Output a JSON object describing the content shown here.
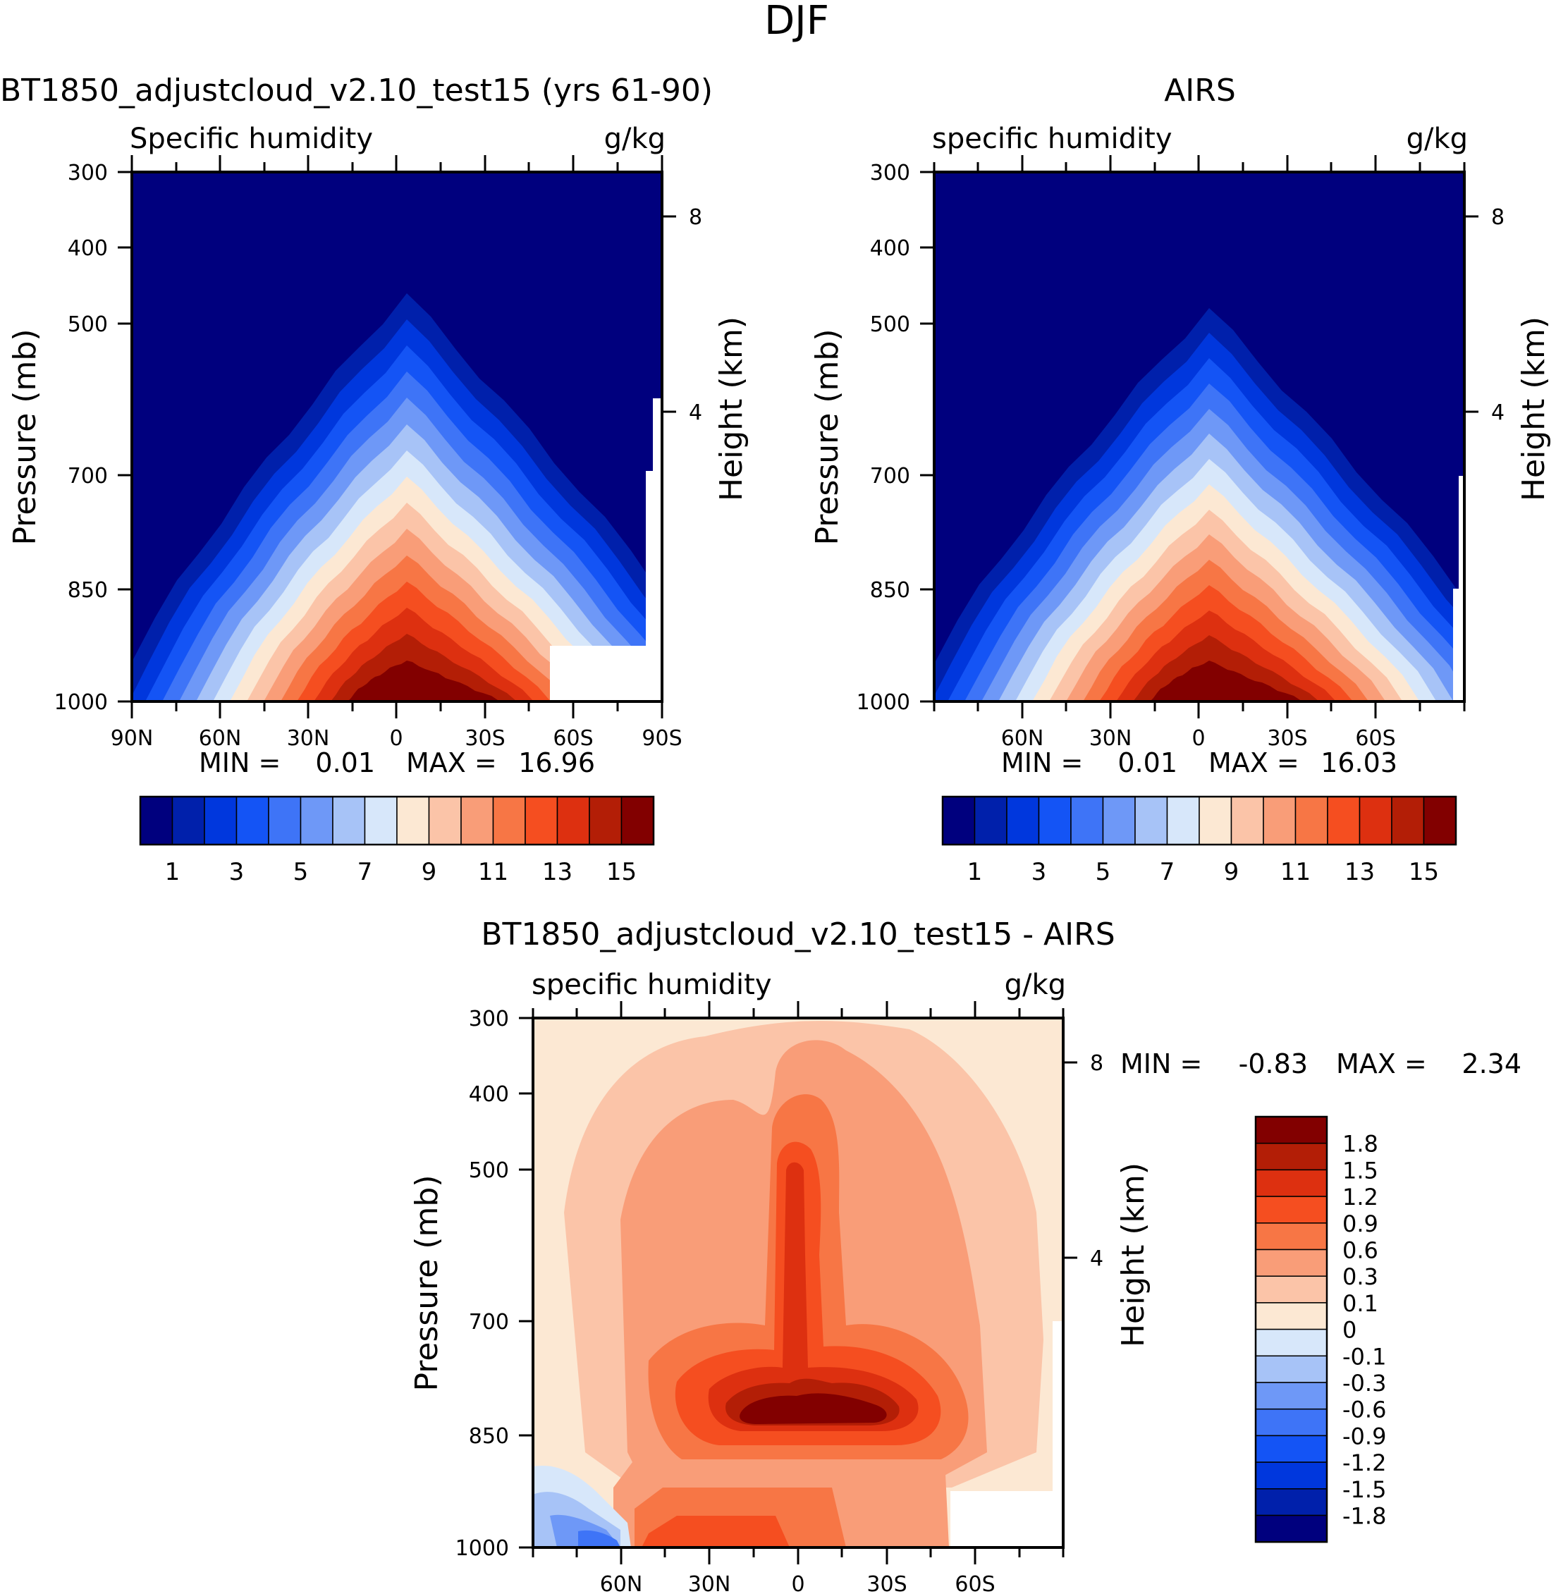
{
  "page_title": "DJF",
  "panels": [
    {
      "title": "BT1850_adjustcloud_v2.10_test15 (yrs 61-90)",
      "left_label": "Specific humidity",
      "units": "g/kg",
      "ylabel": "Pressure (mb)",
      "ylabel_right": "Height (km)",
      "stats": {
        "min_label": "MIN =",
        "min": "0.01",
        "max_label": "MAX =",
        "max": "16.96"
      }
    },
    {
      "title": "AIRS",
      "left_label": "specific humidity",
      "units": "g/kg",
      "ylabel": "Pressure (mb)",
      "ylabel_right": "Height (km)",
      "stats": {
        "min_label": "MIN =",
        "min": "0.01",
        "max_label": "MAX =",
        "max": "16.03"
      }
    },
    {
      "title": "BT1850_adjustcloud_v2.10_test15 - AIRS",
      "left_label": "specific humidity",
      "units": "g/kg",
      "ylabel": "Pressure (mb)",
      "ylabel_right": "Height (km)",
      "stats": {
        "min_label": "MIN =",
        "min": "-0.83",
        "max_label": "MAX =",
        "max": "2.34"
      }
    }
  ],
  "chart_data": [
    {
      "type": "contour",
      "title": "BT1850_adjustcloud_v2.10_test15 (yrs 61-90)",
      "variable": "Specific humidity",
      "units": "g/kg",
      "xlabel": "",
      "ylabel": "Pressure (mb)",
      "ylabel_right": "Height (km)",
      "x_ticks": [
        "90N",
        "60N",
        "30N",
        "0",
        "30S",
        "60S",
        "90S"
      ],
      "y_ticks": [
        "300",
        "400",
        "500",
        "700",
        "850",
        "1000"
      ],
      "y2_ticks": [
        "8",
        "4"
      ],
      "ylim": [
        1000,
        300
      ],
      "levels": [
        1,
        2,
        3,
        4,
        5,
        6,
        7,
        8,
        9,
        10,
        11,
        12,
        13,
        14,
        15
      ],
      "min": 0.01,
      "max": 16.96,
      "colorbar_labels": [
        "1",
        "3",
        "5",
        "7",
        "9",
        "11",
        "13",
        "15"
      ]
    },
    {
      "type": "contour",
      "title": "AIRS",
      "variable": "specific humidity",
      "units": "g/kg",
      "xlabel": "",
      "ylabel": "Pressure (mb)",
      "ylabel_right": "Height (km)",
      "x_ticks": [
        "60N",
        "30N",
        "0",
        "30S",
        "60S"
      ],
      "y_ticks": [
        "300",
        "400",
        "500",
        "700",
        "850",
        "1000"
      ],
      "y2_ticks": [
        "8",
        "4"
      ],
      "ylim": [
        1000,
        300
      ],
      "levels": [
        1,
        2,
        3,
        4,
        5,
        6,
        7,
        8,
        9,
        10,
        11,
        12,
        13,
        14,
        15
      ],
      "min": 0.01,
      "max": 16.03,
      "colorbar_labels": [
        "1",
        "3",
        "5",
        "7",
        "9",
        "11",
        "13",
        "15"
      ]
    },
    {
      "type": "contour",
      "title": "BT1850_adjustcloud_v2.10_test15 - AIRS",
      "variable": "specific humidity",
      "units": "g/kg",
      "xlabel": "",
      "ylabel": "Pressure (mb)",
      "ylabel_right": "Height (km)",
      "x_ticks": [
        "60N",
        "30N",
        "0",
        "30S",
        "60S"
      ],
      "y_ticks": [
        "300",
        "400",
        "500",
        "700",
        "850",
        "1000"
      ],
      "y2_ticks": [
        "8",
        "4"
      ],
      "ylim": [
        1000,
        300
      ],
      "levels": [
        -1.8,
        -1.5,
        -1.2,
        -0.9,
        -0.6,
        -0.3,
        -0.1,
        0,
        0.1,
        0.3,
        0.6,
        0.9,
        1.2,
        1.5,
        1.8
      ],
      "min": -0.83,
      "max": 2.34,
      "colorbar_labels": [
        "1.8",
        "1.5",
        "1.2",
        "0.9",
        "0.6",
        "0.3",
        "0.1",
        "0",
        "-0.1",
        "-0.3",
        "-0.6",
        "-0.9",
        "-1.2",
        "-1.5",
        "-1.8"
      ]
    }
  ],
  "colors": {
    "scale": [
      "#00007e",
      "#0020ab",
      "#0037dd",
      "#1454f5",
      "#3e74f7",
      "#6e98f7",
      "#a7c3f7",
      "#d7e7fa",
      "#fce8d3",
      "#fbc4a8",
      "#f99d78",
      "#f77645",
      "#f54e20",
      "#dd3010",
      "#b31e06",
      "#820000"
    ]
  }
}
